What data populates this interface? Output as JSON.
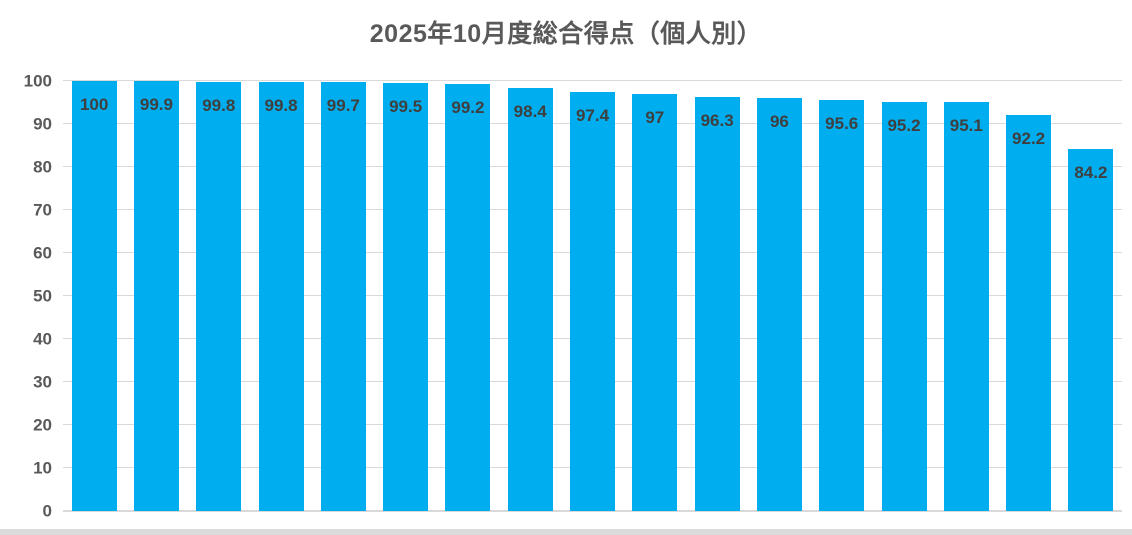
{
  "chart_data": {
    "type": "bar",
    "title": "2025年10月度総合得点（個人別）",
    "xlabel": "",
    "ylabel": "",
    "ylim": [
      0,
      100
    ],
    "yticks": [
      0,
      10,
      20,
      30,
      40,
      50,
      60,
      70,
      80,
      90,
      100
    ],
    "ytick_labels": [
      "0",
      "10",
      "20",
      "30",
      "40",
      "50",
      "60",
      "70",
      "80",
      "90",
      "100"
    ],
    "grid": "horizontal-on",
    "legend": "none",
    "x_axis_labels": "none",
    "data_label_position": "inside-end",
    "values": [
      100,
      99.9,
      99.8,
      99.8,
      99.7,
      99.5,
      99.2,
      98.4,
      97.4,
      97,
      96.3,
      96,
      95.6,
      95.2,
      95.1,
      92.2,
      84.2
    ],
    "data_labels": [
      "100",
      "99.9",
      "99.8",
      "99.8",
      "99.7",
      "99.5",
      "99.2",
      "98.4",
      "97.4",
      "97",
      "96.3",
      "96",
      "95.6",
      "95.2",
      "95.1",
      "92.2",
      "84.2"
    ]
  },
  "colors": {
    "bar_fill": "#00AEEF",
    "gridline": "#D9D9D9",
    "axis_line": "#D9D9D9",
    "title_text": "#595959",
    "tick_text": "#595959",
    "data_label_text": "#3F3F3F",
    "bottom_strip": "#DCDCDC",
    "background": "#FFFFFF"
  }
}
